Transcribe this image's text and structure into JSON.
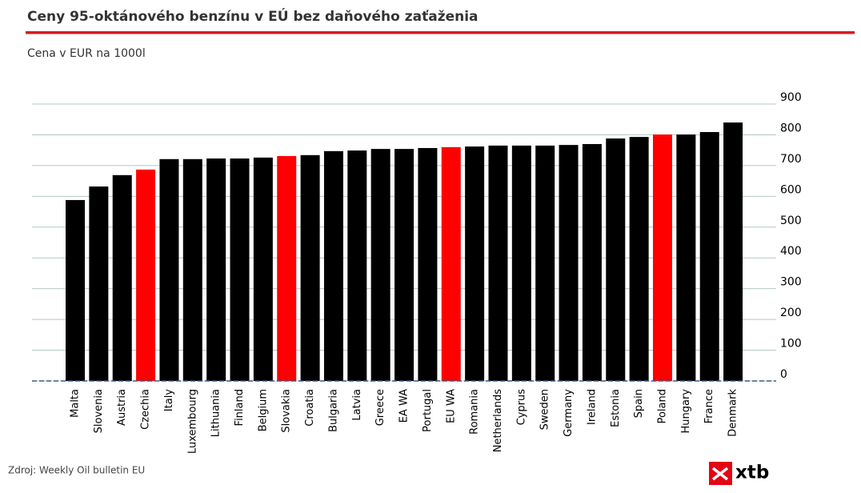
{
  "chart_data": {
    "type": "bar",
    "title": "Ceny 95-oktánového benzínu v EÚ bez daňového zaťaženia",
    "subtitle": "Cena v EUR na 1000l",
    "source": "Zdroj: Weekly Oil bulletin EU",
    "logo": "xtb",
    "categories": [
      "Malta",
      "Slovenia",
      "Austria",
      "Czechia",
      "Italy",
      "Luxembourg",
      "Lithuania",
      "Finland",
      "Belgium",
      "Slovakia",
      "Croatia",
      "Bulgaria",
      "Latvia",
      "Greece",
      "EA WA",
      "Portugal",
      "EU WA",
      "Romania",
      "Netherlands",
      "Cyprus",
      "Sweden",
      "Germany",
      "Ireland",
      "Estonia",
      "Spain",
      "Poland",
      "Hungary",
      "France",
      "Denmark"
    ],
    "values": [
      588,
      632,
      669,
      687,
      721,
      721,
      723,
      723,
      726,
      731,
      734,
      747,
      749,
      754,
      754,
      757,
      760,
      762,
      765,
      765,
      765,
      767,
      770,
      788,
      793,
      801,
      801,
      809,
      840
    ],
    "colors": [
      "#000000",
      "#000000",
      "#000000",
      "#ff0000",
      "#000000",
      "#000000",
      "#000000",
      "#000000",
      "#000000",
      "#ff0000",
      "#000000",
      "#000000",
      "#000000",
      "#000000",
      "#000000",
      "#000000",
      "#ff0000",
      "#000000",
      "#000000",
      "#000000",
      "#000000",
      "#000000",
      "#000000",
      "#000000",
      "#000000",
      "#ff0000",
      "#000000",
      "#000000",
      "#000000"
    ],
    "ylim": [
      0,
      900
    ],
    "yticks": [
      0,
      100,
      200,
      300,
      400,
      500,
      600,
      700,
      800,
      900
    ],
    "grid": true,
    "y_axis_side": "right"
  }
}
